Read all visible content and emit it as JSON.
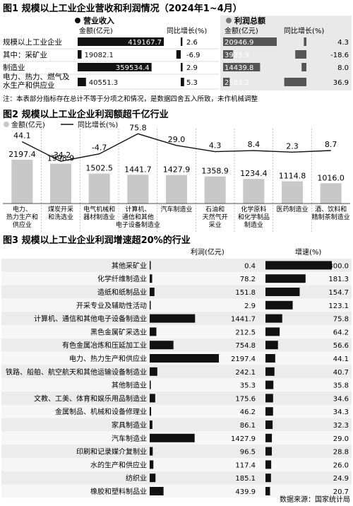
{
  "figure1": {
    "title": "图1 规模以上工业企业营收和利润情况（2024年1~4月）",
    "revenue_header": "营业收入",
    "profit_header": "利润总额",
    "col_amount": "金额(亿元)",
    "col_growth": "同比增长(%)",
    "note": "注：本表部分指标存在总计不等于分项之和情况，是数据四舍五入所致，未作机械调整",
    "chart_data": {
      "type": "table",
      "rows": [
        {
          "label": "规模以上工业企业",
          "revenue": 419167.7,
          "revenue_label": "419167.7",
          "revenue_growth": 2.6,
          "revenue_growth_label": "2.6",
          "profit": 20946.9,
          "profit_label": "20946.9",
          "profit_growth": 4.3,
          "profit_growth_label": "4.3"
        },
        {
          "label": "其中：采矿业",
          "revenue": 19082.1,
          "revenue_label": "19082.1",
          "revenue_growth": -6.9,
          "revenue_growth_label": "-6.9",
          "profit": 3923.9,
          "profit_label": "3923.9",
          "profit_growth": -18.6,
          "profit_growth_label": "-18.6"
        },
        {
          "label": "制造业",
          "revenue": 359534.4,
          "revenue_label": "359534.4",
          "revenue_growth": 2.9,
          "revenue_growth_label": "2.9",
          "profit": 14439.8,
          "profit_label": "14439.8",
          "profit_growth": 8.0,
          "profit_growth_label": "8.0"
        },
        {
          "label": "电力、热力、燃气及水生产和供应业",
          "label_lines": [
            "电力、热力、燃气及",
            "水生产和供应业"
          ],
          "revenue": 40551.3,
          "revenue_label": "40551.3",
          "revenue_growth": 5.3,
          "revenue_growth_label": "5.3",
          "profit": 2583.2,
          "profit_label": "2583.2",
          "profit_growth": 36.9,
          "profit_growth_label": "36.9"
        }
      ]
    }
  },
  "figure2": {
    "title": "图2 规模以上工业企业利润额超千亿行业",
    "legend_amount": "金额(亿元)",
    "legend_growth": "同比增长(%)",
    "colors": {
      "bar": "#c8c8c8",
      "line": "#111111"
    },
    "chart_data": {
      "type": "bar",
      "categories": [
        [
          "电力、",
          "热力生产和",
          "供应业"
        ],
        [
          "煤炭开采",
          "和洗选业"
        ],
        [
          "电气机械和",
          "器材制造业"
        ],
        [
          "计算机、",
          "通信和其他",
          "电子设备制造业"
        ],
        [
          "汽车制造业"
        ],
        [
          "石油和",
          "天然气开",
          "采业"
        ],
        [
          "化学原料",
          "和化学制品",
          "制造业"
        ],
        [
          "医药制造业"
        ],
        [
          "酒、饮料和",
          "精制茶制造业"
        ]
      ],
      "values": [
        2197.4,
        1998.9,
        1502.5,
        1441.7,
        1427.9,
        1358.9,
        1234.4,
        1114.8,
        1016.0
      ],
      "value_labels": [
        "2197.4",
        "1998.9",
        "1502.5",
        "1441.7",
        "1427.9",
        "1358.9",
        "1234.4",
        "1114.8",
        "1016.0"
      ],
      "growth": [
        44.1,
        -34.2,
        -4.7,
        75.8,
        29.0,
        4.3,
        8.4,
        2.3,
        8.7
      ],
      "growth_labels": [
        "44.1",
        "-34.2",
        "-4.7",
        "75.8",
        "29.0",
        "4.3",
        "8.4",
        "2.3",
        "8.7"
      ],
      "ylim": [
        0,
        2300
      ],
      "growth_lim": [
        -45,
        85
      ]
    }
  },
  "figure3": {
    "title": "图3 规模以上工业企业利润增速超20%的行业",
    "col_profit": "利润(亿元)",
    "col_growth": "增速(%)",
    "source": "数据来源：国家统计局",
    "chart_data": {
      "type": "bar",
      "categories": [
        "其他采矿业",
        "化学纤维制造业",
        "造纸和纸制品业",
        "开采专业及辅助性活动",
        "计算机、通信和其他电子设备制造业",
        "黑色金属矿采选业",
        "有色金属冶炼和压延加工业",
        "电力、热力生产和供应业",
        "铁路、船舶、航空航天和其他运输设备制造业",
        "其他制造业",
        "文教、工美、体育和娱乐用品制造业",
        "金属制品、机械和设备修理业",
        "家具制造业",
        "汽车制造业",
        "印刷和记录媒介复制业",
        "水的生产和供应业",
        "纺织业",
        "橡胶和塑料制品业"
      ],
      "profit": [
        0.4,
        78.2,
        151.8,
        2.9,
        1441.7,
        212.5,
        754.8,
        2197.4,
        242.1,
        35.3,
        175.6,
        46.2,
        86.1,
        1427.9,
        96.5,
        117.4,
        185.1,
        439.9
      ],
      "profit_labels": [
        "0.4",
        "78.2",
        "151.8",
        "2.9",
        "1441.7",
        "212.5",
        "754.8",
        "2197.4",
        "242.1",
        "35.3",
        "175.6",
        "46.2",
        "86.1",
        "1427.9",
        "96.5",
        "117.4",
        "185.1",
        "439.9"
      ],
      "growth": [
        300.0,
        181.3,
        154.7,
        123.1,
        75.8,
        64.2,
        56.6,
        44.1,
        40.7,
        35.8,
        34.6,
        34.3,
        32.3,
        29.0,
        28.8,
        26.0,
        24.9,
        20.7
      ],
      "growth_labels": [
        "300.0",
        "181.3",
        "154.7",
        "123.1",
        "75.8",
        "64.2",
        "56.6",
        "44.1",
        "40.7",
        "35.8",
        "34.6",
        "34.3",
        "32.3",
        "29.0",
        "28.8",
        "26.0",
        "24.9",
        "20.7"
      ]
    }
  }
}
